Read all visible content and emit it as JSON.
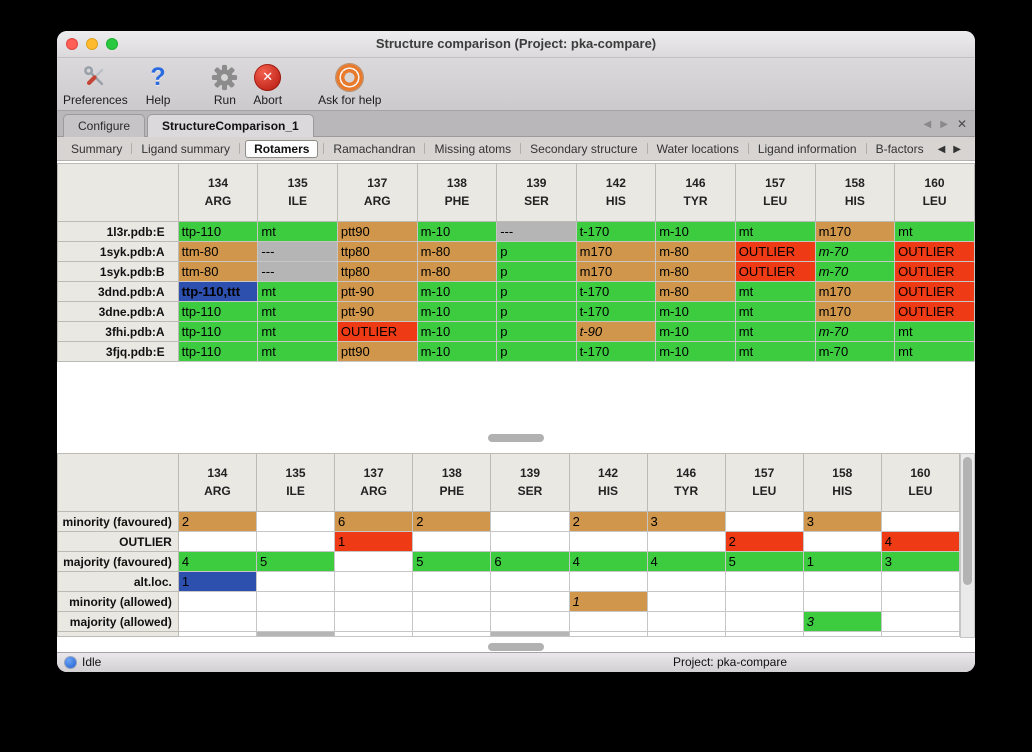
{
  "window": {
    "title": "Structure comparison (Project: pka-compare)"
  },
  "toolbar": {
    "items": [
      {
        "label": "Preferences",
        "icon": "tools-icon"
      },
      {
        "label": "Help",
        "icon": "help-icon"
      },
      {
        "label": "Run",
        "icon": "gear-icon"
      },
      {
        "label": "Abort",
        "icon": "abort-icon"
      },
      {
        "label": "Ask for help",
        "icon": "lifebuoy-icon"
      }
    ]
  },
  "tabs": {
    "items": [
      {
        "label": "Configure",
        "active": false
      },
      {
        "label": "StructureComparison_1",
        "active": true
      }
    ]
  },
  "subtabs": {
    "items": [
      "Summary",
      "Ligand summary",
      "Rotamers",
      "Ramachandran",
      "Missing atoms",
      "Secondary structure",
      "Water locations",
      "Ligand information",
      "B-factors"
    ],
    "active_index": 2
  },
  "icons": {
    "help": "?",
    "abort": "✕",
    "prev": "◀",
    "next": "▶",
    "close_tab": "✕"
  },
  "colors": {
    "green": "#3dcc40",
    "tan": "#d0964b",
    "red": "#ee3b16",
    "gray": "#b5b5b5",
    "blue": "#2d4fae",
    "accent": "#1c5fd0"
  },
  "columns": [
    {
      "num": "134",
      "res": "ARG"
    },
    {
      "num": "135",
      "res": "ILE"
    },
    {
      "num": "137",
      "res": "ARG"
    },
    {
      "num": "138",
      "res": "PHE"
    },
    {
      "num": "139",
      "res": "SER"
    },
    {
      "num": "142",
      "res": "HIS"
    },
    {
      "num": "146",
      "res": "TYR"
    },
    {
      "num": "157",
      "res": "LEU"
    },
    {
      "num": "158",
      "res": "HIS"
    },
    {
      "num": "160",
      "res": "LEU"
    }
  ],
  "top_table": {
    "rows": [
      {
        "label": "1l3r.pdb:E",
        "cells": [
          {
            "t": "ttp-110",
            "c": "green"
          },
          {
            "t": "mt",
            "c": "green"
          },
          {
            "t": "ptt90",
            "c": "tan"
          },
          {
            "t": "m-10",
            "c": "green"
          },
          {
            "t": "---",
            "c": "gray"
          },
          {
            "t": "t-170",
            "c": "green"
          },
          {
            "t": "m-10",
            "c": "green"
          },
          {
            "t": "mt",
            "c": "green"
          },
          {
            "t": "m170",
            "c": "tan"
          },
          {
            "t": "mt",
            "c": "green"
          }
        ]
      },
      {
        "label": "1syk.pdb:A",
        "cells": [
          {
            "t": "ttm-80",
            "c": "tan"
          },
          {
            "t": "---",
            "c": "gray"
          },
          {
            "t": "ttp80",
            "c": "tan"
          },
          {
            "t": "m-80",
            "c": "tan"
          },
          {
            "t": "p",
            "c": "green"
          },
          {
            "t": "m170",
            "c": "tan"
          },
          {
            "t": "m-80",
            "c": "tan"
          },
          {
            "t": "OUTLIER",
            "c": "red"
          },
          {
            "t": "m-70",
            "c": "green",
            "i": true
          },
          {
            "t": "OUTLIER",
            "c": "red"
          }
        ]
      },
      {
        "label": "1syk.pdb:B",
        "cells": [
          {
            "t": "ttm-80",
            "c": "tan"
          },
          {
            "t": "---",
            "c": "gray"
          },
          {
            "t": "ttp80",
            "c": "tan"
          },
          {
            "t": "m-80",
            "c": "tan"
          },
          {
            "t": "p",
            "c": "green"
          },
          {
            "t": "m170",
            "c": "tan"
          },
          {
            "t": "m-80",
            "c": "tan"
          },
          {
            "t": "OUTLIER",
            "c": "red"
          },
          {
            "t": "m-70",
            "c": "green",
            "i": true
          },
          {
            "t": "OUTLIER",
            "c": "red"
          }
        ]
      },
      {
        "label": "3dnd.pdb:A",
        "cells": [
          {
            "t": "ttp-110,ttt",
            "c": "blue",
            "b": true
          },
          {
            "t": "mt",
            "c": "green"
          },
          {
            "t": "ptt-90",
            "c": "tan"
          },
          {
            "t": "m-10",
            "c": "green"
          },
          {
            "t": "p",
            "c": "green"
          },
          {
            "t": "t-170",
            "c": "green"
          },
          {
            "t": "m-80",
            "c": "tan"
          },
          {
            "t": "mt",
            "c": "green"
          },
          {
            "t": "m170",
            "c": "tan"
          },
          {
            "t": "OUTLIER",
            "c": "red"
          }
        ]
      },
      {
        "label": "3dne.pdb:A",
        "cells": [
          {
            "t": "ttp-110",
            "c": "green"
          },
          {
            "t": "mt",
            "c": "green"
          },
          {
            "t": "ptt-90",
            "c": "tan"
          },
          {
            "t": "m-10",
            "c": "green"
          },
          {
            "t": "p",
            "c": "green"
          },
          {
            "t": "t-170",
            "c": "green"
          },
          {
            "t": "m-10",
            "c": "green"
          },
          {
            "t": "mt",
            "c": "green"
          },
          {
            "t": "m170",
            "c": "tan"
          },
          {
            "t": "OUTLIER",
            "c": "red"
          }
        ]
      },
      {
        "label": "3fhi.pdb:A",
        "cells": [
          {
            "t": "ttp-110",
            "c": "green"
          },
          {
            "t": "mt",
            "c": "green"
          },
          {
            "t": "OUTLIER",
            "c": "red"
          },
          {
            "t": "m-10",
            "c": "green"
          },
          {
            "t": "p",
            "c": "green"
          },
          {
            "t": "t-90",
            "c": "tan",
            "i": true
          },
          {
            "t": "m-10",
            "c": "green"
          },
          {
            "t": "mt",
            "c": "green"
          },
          {
            "t": "m-70",
            "c": "green",
            "i": true
          },
          {
            "t": "mt",
            "c": "green"
          }
        ]
      },
      {
        "label": "3fjq.pdb:E",
        "cells": [
          {
            "t": "ttp-110",
            "c": "green"
          },
          {
            "t": "mt",
            "c": "green"
          },
          {
            "t": "ptt90",
            "c": "tan"
          },
          {
            "t": "m-10",
            "c": "green"
          },
          {
            "t": "p",
            "c": "green"
          },
          {
            "t": "t-170",
            "c": "green"
          },
          {
            "t": "m-10",
            "c": "green"
          },
          {
            "t": "mt",
            "c": "green"
          },
          {
            "t": "m-70",
            "c": "green"
          },
          {
            "t": "mt",
            "c": "green"
          }
        ]
      }
    ]
  },
  "bottom_table": {
    "rows": [
      {
        "label": "minority (favoured)",
        "cells": [
          {
            "t": "2",
            "c": "tan"
          },
          null,
          {
            "t": "6",
            "c": "tan"
          },
          {
            "t": "2",
            "c": "tan"
          },
          null,
          {
            "t": "2",
            "c": "tan"
          },
          {
            "t": "3",
            "c": "tan"
          },
          null,
          {
            "t": "3",
            "c": "tan"
          },
          null
        ]
      },
      {
        "label": "OUTLIER",
        "cells": [
          null,
          null,
          {
            "t": "1",
            "c": "red"
          },
          null,
          null,
          null,
          null,
          {
            "t": "2",
            "c": "red"
          },
          null,
          {
            "t": "4",
            "c": "red"
          }
        ]
      },
      {
        "label": "majority (favoured)",
        "cells": [
          {
            "t": "4",
            "c": "green"
          },
          {
            "t": "5",
            "c": "green"
          },
          null,
          {
            "t": "5",
            "c": "green"
          },
          {
            "t": "6",
            "c": "green"
          },
          {
            "t": "4",
            "c": "green"
          },
          {
            "t": "4",
            "c": "green"
          },
          {
            "t": "5",
            "c": "green"
          },
          {
            "t": "1",
            "c": "green"
          },
          {
            "t": "3",
            "c": "green"
          }
        ]
      },
      {
        "label": "alt.loc.",
        "cells": [
          {
            "t": "1",
            "c": "blue"
          },
          null,
          null,
          null,
          null,
          null,
          null,
          null,
          null,
          null
        ]
      },
      {
        "label": "minority (allowed)",
        "cells": [
          null,
          null,
          null,
          null,
          null,
          {
            "t": "1",
            "c": "tan",
            "i": true
          },
          null,
          null,
          null,
          null
        ]
      },
      {
        "label": "majority (allowed)",
        "cells": [
          null,
          null,
          null,
          null,
          null,
          null,
          null,
          null,
          {
            "t": "3",
            "c": "green",
            "i": true
          },
          null
        ]
      }
    ],
    "clipped_row": {
      "gray_columns": [
        1,
        4
      ]
    }
  },
  "status": {
    "state": "Idle",
    "project": "Project: pka-compare"
  }
}
